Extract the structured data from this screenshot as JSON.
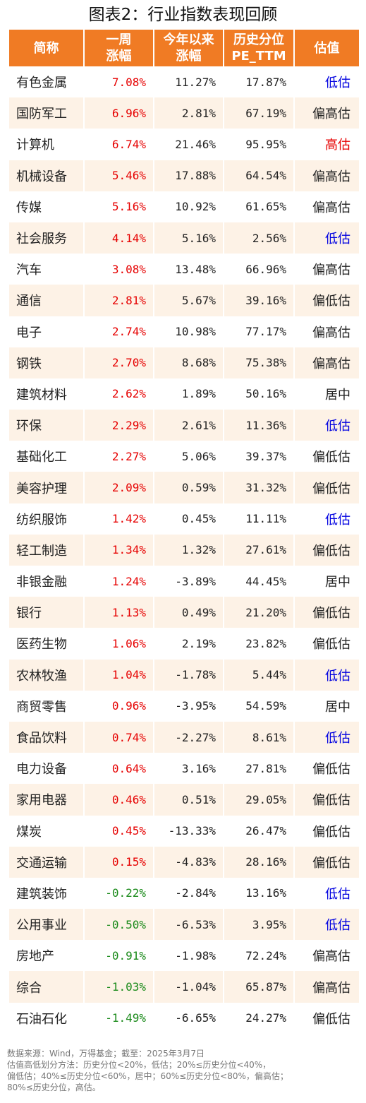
{
  "title": "图表2：行业指数表现回顾",
  "headers": [
    "简称",
    "一周\n涨幅",
    "今年以来\n涨幅",
    "历史分位\nPE_TTM",
    "估值"
  ],
  "rows": [
    {
      "name": "有色金属",
      "week": "7.08%",
      "ytd": "11.27%",
      "pe": "17.87%",
      "val": "低估"
    },
    {
      "name": "国防军工",
      "week": "6.96%",
      "ytd": "2.81%",
      "pe": "67.19%",
      "val": "偏高估"
    },
    {
      "name": "计算机",
      "week": "6.74%",
      "ytd": "21.46%",
      "pe": "95.95%",
      "val": "高估"
    },
    {
      "name": "机械设备",
      "week": "5.46%",
      "ytd": "17.88%",
      "pe": "64.54%",
      "val": "偏高估"
    },
    {
      "name": "传媒",
      "week": "5.16%",
      "ytd": "10.92%",
      "pe": "61.65%",
      "val": "偏高估"
    },
    {
      "name": "社会服务",
      "week": "4.14%",
      "ytd": "5.16%",
      "pe": "2.56%",
      "val": "低估"
    },
    {
      "name": "汽车",
      "week": "3.08%",
      "ytd": "13.48%",
      "pe": "66.96%",
      "val": "偏高估"
    },
    {
      "name": "通信",
      "week": "2.81%",
      "ytd": "5.67%",
      "pe": "39.16%",
      "val": "偏低估"
    },
    {
      "name": "电子",
      "week": "2.74%",
      "ytd": "10.98%",
      "pe": "77.17%",
      "val": "偏高估"
    },
    {
      "name": "钢铁",
      "week": "2.70%",
      "ytd": "8.68%",
      "pe": "75.38%",
      "val": "偏高估"
    },
    {
      "name": "建筑材料",
      "week": "2.62%",
      "ytd": "1.89%",
      "pe": "50.16%",
      "val": "居中"
    },
    {
      "name": "环保",
      "week": "2.29%",
      "ytd": "2.61%",
      "pe": "11.36%",
      "val": "低估"
    },
    {
      "name": "基础化工",
      "week": "2.27%",
      "ytd": "5.06%",
      "pe": "39.37%",
      "val": "偏低估"
    },
    {
      "name": "美容护理",
      "week": "2.09%",
      "ytd": "0.59%",
      "pe": "31.32%",
      "val": "偏低估"
    },
    {
      "name": "纺织服饰",
      "week": "1.42%",
      "ytd": "0.45%",
      "pe": "11.11%",
      "val": "低估"
    },
    {
      "name": "轻工制造",
      "week": "1.34%",
      "ytd": "1.32%",
      "pe": "27.61%",
      "val": "偏低估"
    },
    {
      "name": "非银金融",
      "week": "1.24%",
      "ytd": "-3.89%",
      "pe": "44.45%",
      "val": "居中"
    },
    {
      "name": "银行",
      "week": "1.13%",
      "ytd": "0.49%",
      "pe": "21.20%",
      "val": "偏低估"
    },
    {
      "name": "医药生物",
      "week": "1.06%",
      "ytd": "2.19%",
      "pe": "23.82%",
      "val": "偏低估"
    },
    {
      "name": "农林牧渔",
      "week": "1.04%",
      "ytd": "-1.78%",
      "pe": "5.44%",
      "val": "低估"
    },
    {
      "name": "商贸零售",
      "week": "0.96%",
      "ytd": "-3.95%",
      "pe": "54.59%",
      "val": "居中"
    },
    {
      "name": "食品饮料",
      "week": "0.74%",
      "ytd": "-2.27%",
      "pe": "8.61%",
      "val": "低估"
    },
    {
      "name": "电力设备",
      "week": "0.64%",
      "ytd": "3.16%",
      "pe": "27.81%",
      "val": "偏低估"
    },
    {
      "name": "家用电器",
      "week": "0.46%",
      "ytd": "0.51%",
      "pe": "29.05%",
      "val": "偏低估"
    },
    {
      "name": "煤炭",
      "week": "0.45%",
      "ytd": "-13.33%",
      "pe": "26.47%",
      "val": "偏低估"
    },
    {
      "name": "交通运输",
      "week": "0.15%",
      "ytd": "-4.83%",
      "pe": "28.16%",
      "val": "偏低估"
    },
    {
      "name": "建筑装饰",
      "week": "-0.22%",
      "ytd": "-2.84%",
      "pe": "13.16%",
      "val": "低估"
    },
    {
      "name": "公用事业",
      "week": "-0.50%",
      "ytd": "-6.53%",
      "pe": "3.95%",
      "val": "低估"
    },
    {
      "name": "房地产",
      "week": "-0.91%",
      "ytd": "-1.98%",
      "pe": "72.24%",
      "val": "偏高估"
    },
    {
      "name": "综合",
      "week": "-1.03%",
      "ytd": "-1.04%",
      "pe": "65.87%",
      "val": "偏高估"
    },
    {
      "name": "石油石化",
      "week": "-1.49%",
      "ytd": "-6.65%",
      "pe": "24.27%",
      "val": "偏低估"
    }
  ],
  "footer": [
    "数据来源：Wind，万得基金；截至：2025年3月7日",
    "估值高低划分方法：历史分位<20%，低估；20%≤历史分位<40%，",
    "偏低估；40%≤历史分位<60%，居中；60%≤历史分位<80%，偏高估；",
    "80%≤历史分位，高估。"
  ],
  "colors": {
    "header_bg": "#f07b24",
    "positive": "#e60000",
    "negative": "#1a8a1a",
    "low_val": "#0000e0",
    "high_val": "#e60000"
  }
}
